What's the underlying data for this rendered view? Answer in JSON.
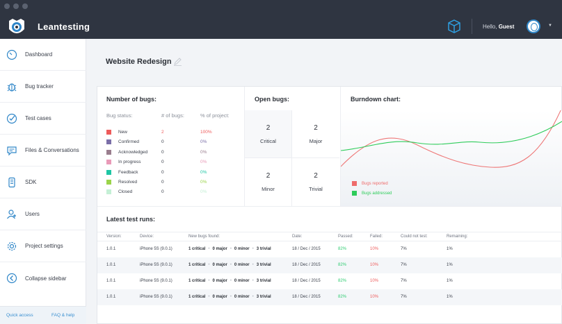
{
  "app": {
    "name": "Leantesting",
    "greeting_prefix": "Hello, ",
    "user_name": "Guest"
  },
  "sidebar": {
    "items": [
      {
        "label": "Dashboard",
        "icon": "speedometer-icon"
      },
      {
        "label": "Bug tracker",
        "icon": "bug-icon"
      },
      {
        "label": "Test cases",
        "icon": "check-circle-icon"
      },
      {
        "label": "Files & Conversations",
        "icon": "chat-bubble-icon"
      },
      {
        "label": "SDK",
        "icon": "mobile-device-icon"
      },
      {
        "label": "Users",
        "icon": "users-icon"
      },
      {
        "label": "Project settings",
        "icon": "gear-icon"
      },
      {
        "label": "Collapse sidebar",
        "icon": "chevron-left-icon"
      }
    ],
    "footer": {
      "quick_access": "Quick access",
      "faq": "FAQ & help"
    }
  },
  "project": {
    "title": "Website Redesign"
  },
  "number_of_bugs": {
    "title": "Number of bugs:",
    "headers": {
      "status": "Bug status:",
      "count": "# of bugs:",
      "percent": "% of project:"
    },
    "rows": [
      {
        "status": "New",
        "count": "2",
        "percent": "100%",
        "color": "#ee5b5b"
      },
      {
        "status": "Confirmed",
        "count": "0",
        "percent": "0%",
        "color": "#7b6fa8"
      },
      {
        "status": "Acknowledged",
        "count": "0",
        "percent": "0%",
        "color": "#9a7e8e"
      },
      {
        "status": "In progress",
        "count": "0",
        "percent": "0%",
        "color": "#e99ab8"
      },
      {
        "status": "Feedback",
        "count": "0",
        "percent": "0%",
        "color": "#1ec6a4"
      },
      {
        "status": "Resolved",
        "count": "0",
        "percent": "0%",
        "color": "#9bd44a"
      },
      {
        "status": "Closed",
        "count": "0",
        "percent": "0%",
        "color": "#c5f0d6"
      }
    ]
  },
  "open_bugs": {
    "title": "Open bugs:",
    "cells": [
      {
        "count": "2",
        "label": "Critical"
      },
      {
        "count": "2",
        "label": "Major"
      },
      {
        "count": "2",
        "label": "Minor"
      },
      {
        "count": "2",
        "label": "Trivial"
      }
    ]
  },
  "burndown": {
    "title": "Burndown chart:",
    "legend": [
      {
        "label": "Bugs reported",
        "color": "#ee6b6b"
      },
      {
        "label": "Bugs addressed",
        "color": "#2ecc5a"
      }
    ]
  },
  "test_runs": {
    "title": "Latest test runs:",
    "headers": {
      "version": "Version:",
      "device": "Device:",
      "found": "New bugs found:",
      "date": "Date:",
      "passed": "Passed:",
      "failed": "Failed:",
      "could_not": "Could not test:",
      "remaining": "Remaining:"
    },
    "rows": [
      {
        "version": "1.0.1",
        "device": "iPhone 5S (9.0.1)",
        "critical": "1 critical",
        "major": "0 major",
        "minor": "0 minor",
        "trivial": "3 trivial",
        "date": "18 / Dec / 2015",
        "passed": "82%",
        "failed": "10%",
        "could_not": "7%",
        "remaining": "1%"
      },
      {
        "version": "1.0.1",
        "device": "iPhone 5S (9.0.1)",
        "critical": "1 critical",
        "major": "0 major",
        "minor": "0 minor",
        "trivial": "3 trivial",
        "date": "18 / Dec / 2015",
        "passed": "82%",
        "failed": "10%",
        "could_not": "7%",
        "remaining": "1%"
      },
      {
        "version": "1.0.1",
        "device": "iPhone 5S (9.0.1)",
        "critical": "1 critical",
        "major": "0 major",
        "minor": "0 minor",
        "trivial": "3 trivial",
        "date": "18 / Dec / 2015",
        "passed": "82%",
        "failed": "10%",
        "could_not": "7%",
        "remaining": "1%"
      },
      {
        "version": "1.0.1",
        "device": "iPhone 5S (9.0.1)",
        "critical": "1 critical",
        "major": "0 major",
        "minor": "0 minor",
        "trivial": "3 trivial",
        "date": "18 / Dec / 2015",
        "passed": "82%",
        "failed": "10%",
        "could_not": "7%",
        "remaining": "1%"
      }
    ]
  },
  "colors": {
    "passed": "#2ecc71",
    "failed": "#ee5b5b",
    "accent": "#2f86c8",
    "topbar": "#2f3541"
  }
}
